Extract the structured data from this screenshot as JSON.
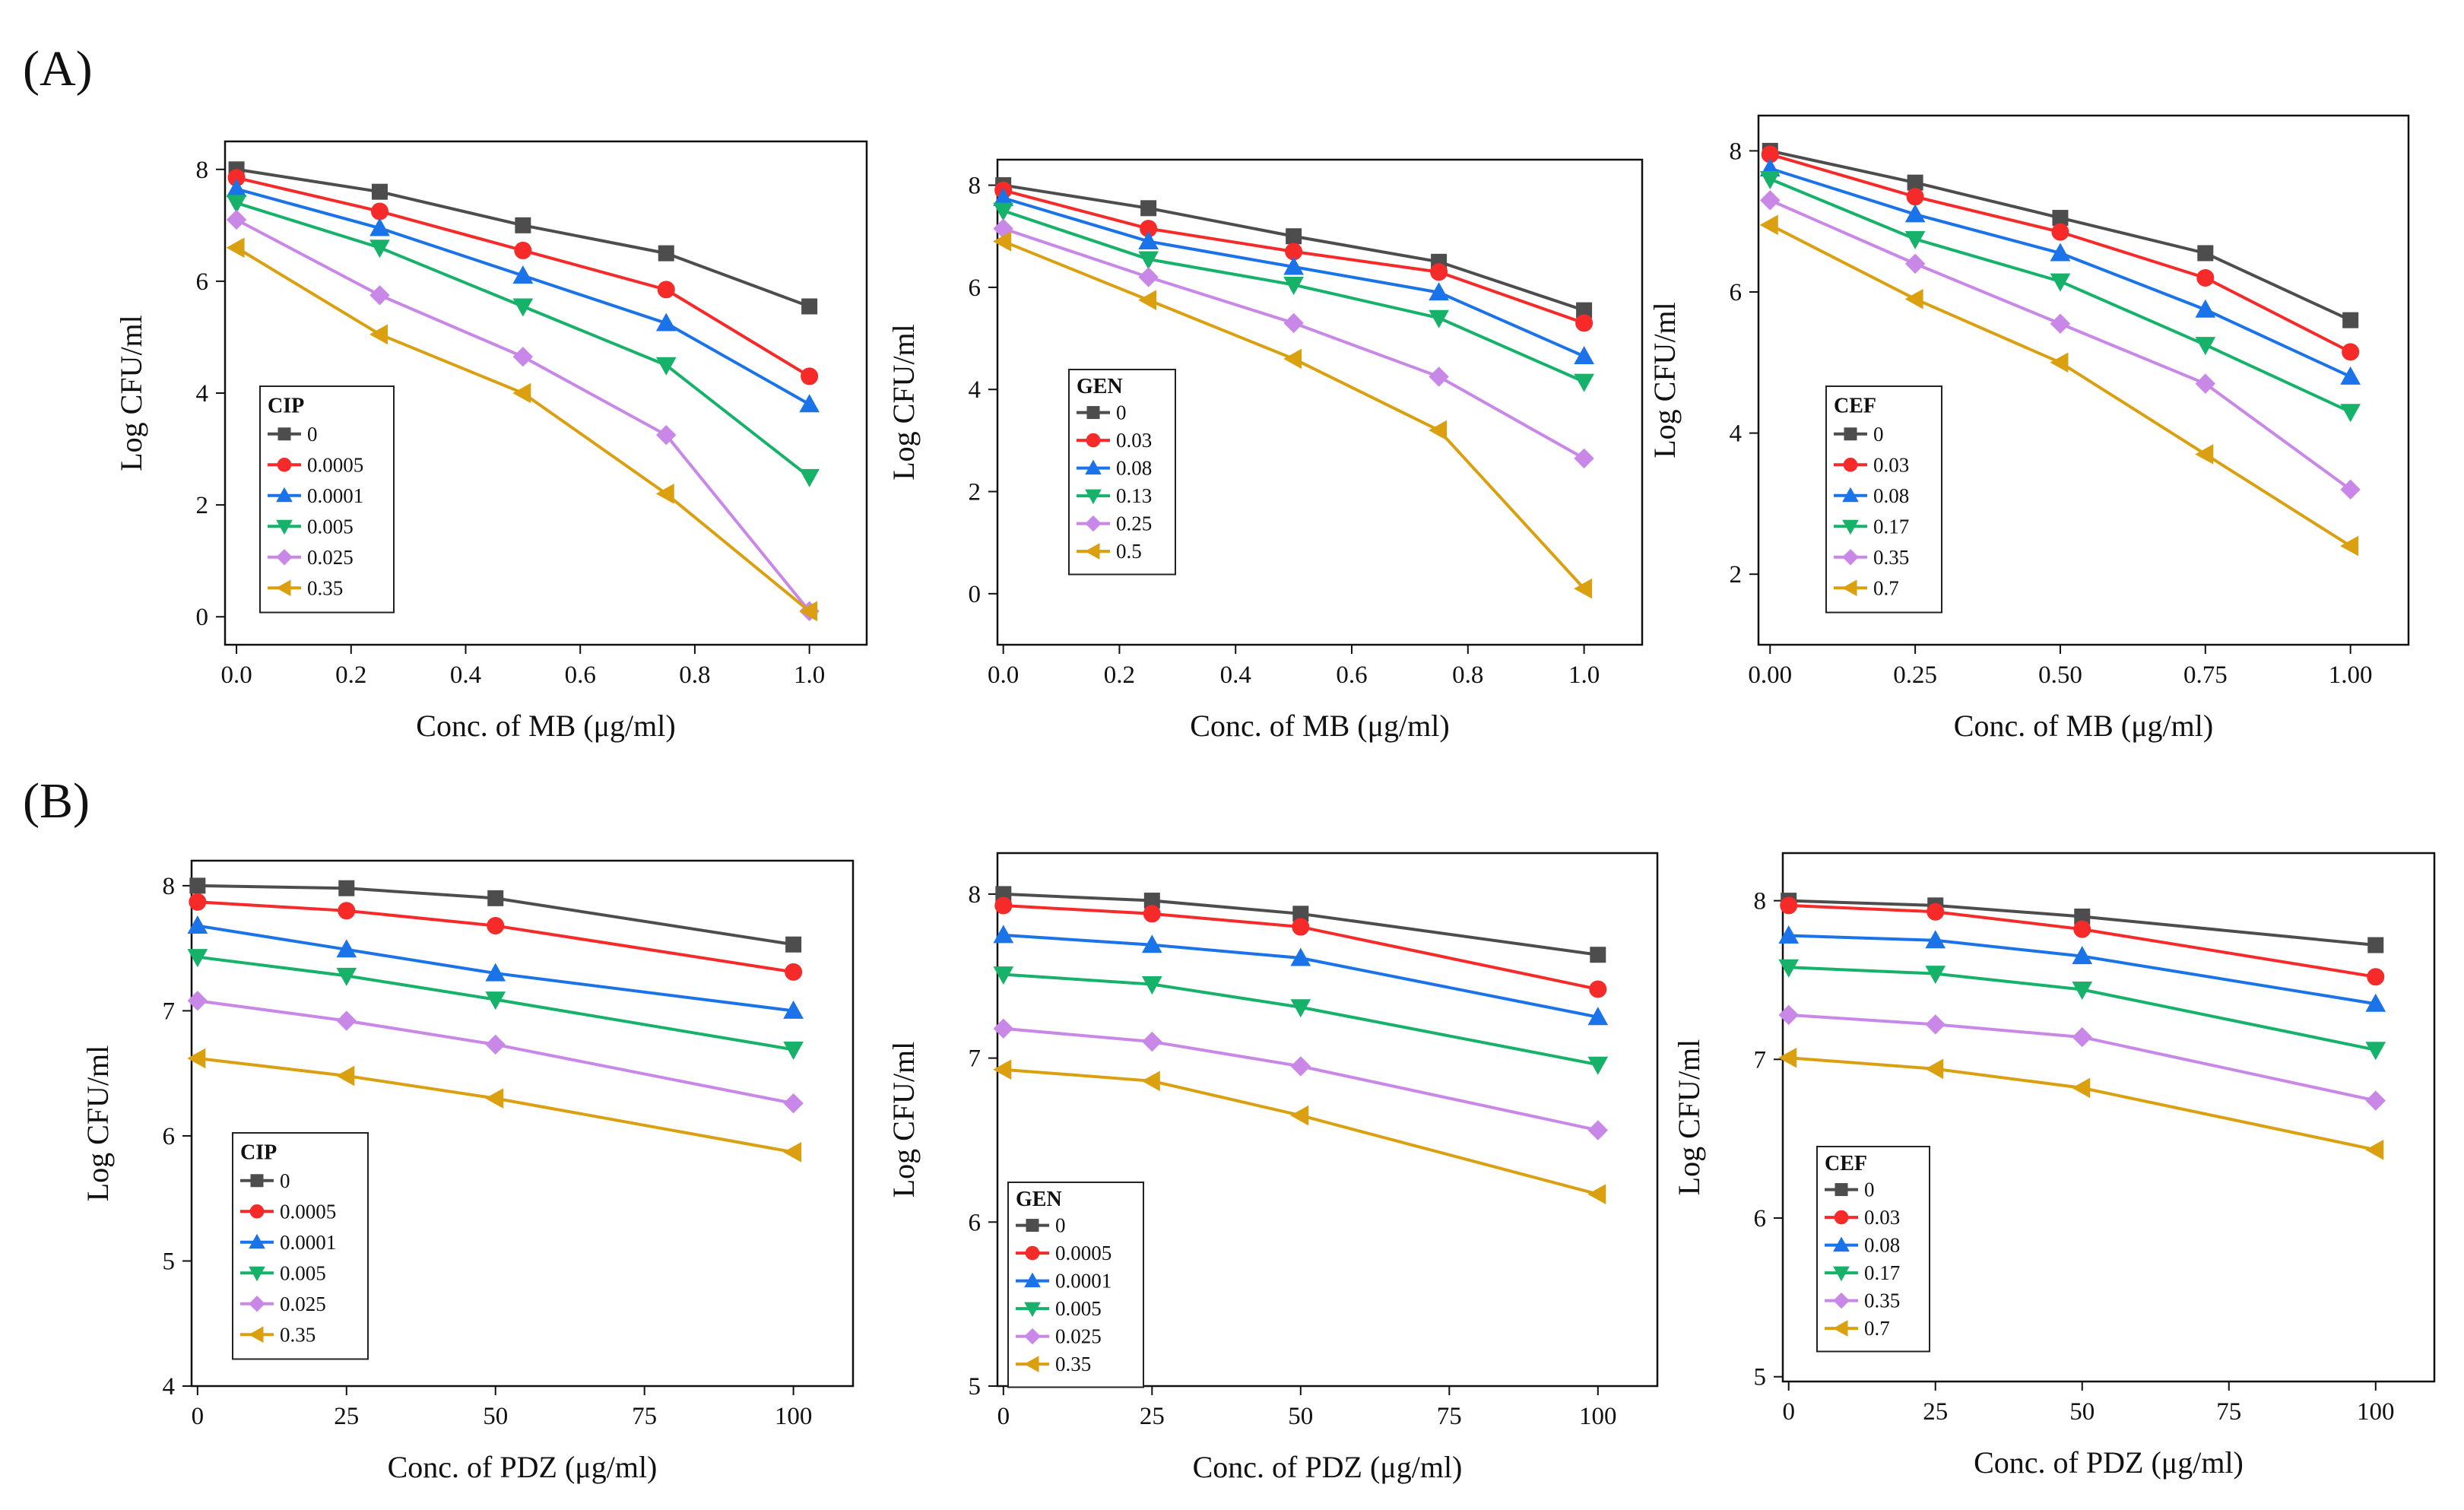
{
  "panel_labels": [
    "(A)",
    "(B)"
  ],
  "colors": {
    "series": [
      "#4d4d4d",
      "#f72a2a",
      "#1a73e8",
      "#17b26a",
      "#c987e8",
      "#dba010"
    ]
  },
  "marker_shapes": [
    "square",
    "circle",
    "triangle-up",
    "triangle-down",
    "diamond",
    "triangle-left"
  ],
  "chart_data": [
    {
      "type": "line",
      "panel": "A",
      "legend_title": "CIP",
      "xlabel": "Conc. of MB (μg/ml)",
      "ylabel": "Log CFU/ml",
      "x": [
        0,
        0.25,
        0.5,
        0.75,
        1.0
      ],
      "xticks": [
        0,
        0.2,
        0.4,
        0.6,
        0.8,
        1.0
      ],
      "xtick_labels": [
        "0.0",
        "0.2",
        "0.4",
        "0.6",
        "0.8",
        "1.0"
      ],
      "yticks": [
        0,
        2,
        4,
        6,
        8
      ],
      "ytick_labels": [
        "0",
        "2",
        "4",
        "6",
        "8"
      ],
      "xlim": [
        -0.02,
        1.1
      ],
      "ylim": [
        -0.5,
        8.5
      ],
      "series": [
        {
          "name": "0",
          "values": [
            8.0,
            7.6,
            7.0,
            6.5,
            5.55
          ]
        },
        {
          "name": "0.0005",
          "values": [
            7.85,
            7.25,
            6.55,
            5.85,
            4.3
          ]
        },
        {
          "name": "0.0001",
          "values": [
            7.65,
            6.95,
            6.1,
            5.25,
            3.8
          ]
        },
        {
          "name": "0.005",
          "values": [
            7.4,
            6.6,
            5.55,
            4.5,
            2.5
          ]
        },
        {
          "name": "0.025",
          "values": [
            7.1,
            5.75,
            4.65,
            3.25,
            0.1
          ]
        },
        {
          "name": "0.35",
          "values": [
            6.6,
            5.05,
            4.0,
            2.2,
            0.1
          ]
        }
      ]
    },
    {
      "type": "line",
      "panel": "A",
      "legend_title": "GEN",
      "xlabel": "Conc. of MB (μg/ml)",
      "ylabel": "Log CFU/ml",
      "x": [
        0,
        0.25,
        0.5,
        0.75,
        1.0
      ],
      "xticks": [
        0,
        0.2,
        0.4,
        0.6,
        0.8,
        1.0
      ],
      "xtick_labels": [
        "0.0",
        "0.2",
        "0.4",
        "0.6",
        "0.8",
        "1.0"
      ],
      "yticks": [
        0,
        2,
        4,
        6,
        8
      ],
      "ytick_labels": [
        "0",
        "2",
        "4",
        "6",
        "8"
      ],
      "xlim": [
        -0.01,
        1.1
      ],
      "ylim": [
        -1.0,
        8.5
      ],
      "series": [
        {
          "name": "0",
          "values": [
            8.0,
            7.55,
            7.0,
            6.5,
            5.55
          ]
        },
        {
          "name": "0.03",
          "values": [
            7.9,
            7.15,
            6.7,
            6.3,
            5.3
          ]
        },
        {
          "name": "0.08",
          "values": [
            7.75,
            6.9,
            6.4,
            5.9,
            4.65
          ]
        },
        {
          "name": "0.13",
          "values": [
            7.5,
            6.55,
            6.05,
            5.4,
            4.15
          ]
        },
        {
          "name": "0.25",
          "values": [
            7.15,
            6.2,
            5.3,
            4.25,
            2.65
          ]
        },
        {
          "name": "0.5",
          "values": [
            6.9,
            5.75,
            4.6,
            3.2,
            0.1
          ]
        }
      ]
    },
    {
      "type": "line",
      "panel": "A",
      "legend_title": "CEF",
      "xlabel": "Conc. of MB (μg/ml)",
      "ylabel": "Log CFU/ml",
      "x": [
        0,
        0.25,
        0.5,
        0.75,
        1.0
      ],
      "xticks": [
        0,
        0.25,
        0.5,
        0.75,
        1.0
      ],
      "xtick_labels": [
        "0.00",
        "0.25",
        "0.50",
        "0.75",
        "1.00"
      ],
      "yticks": [
        2,
        4,
        6,
        8
      ],
      "ytick_labels": [
        "2",
        "4",
        "6",
        "8"
      ],
      "xlim": [
        -0.02,
        1.1
      ],
      "ylim": [
        1.0,
        8.5
      ],
      "series": [
        {
          "name": "0",
          "values": [
            8.0,
            7.55,
            7.05,
            6.55,
            5.6
          ]
        },
        {
          "name": "0.03",
          "values": [
            7.95,
            7.35,
            6.85,
            6.2,
            5.15
          ]
        },
        {
          "name": "0.08",
          "values": [
            7.75,
            7.1,
            6.55,
            5.75,
            4.8
          ]
        },
        {
          "name": "0.17",
          "values": [
            7.6,
            6.75,
            6.15,
            5.25,
            4.3
          ]
        },
        {
          "name": "0.35",
          "values": [
            7.3,
            6.4,
            5.55,
            4.7,
            3.2
          ]
        },
        {
          "name": "0.7",
          "values": [
            6.95,
            5.9,
            5.0,
            3.7,
            2.4
          ]
        }
      ]
    },
    {
      "type": "line",
      "panel": "B",
      "legend_title": "CIP",
      "xlabel": "Conc. of PDZ (μg/ml)",
      "ylabel": "Log CFU/ml",
      "x": [
        0,
        25,
        50,
        100
      ],
      "xticks": [
        0,
        25,
        50,
        75,
        100
      ],
      "xtick_labels": [
        "0",
        "25",
        "50",
        "75",
        "100"
      ],
      "yticks": [
        4,
        5,
        6,
        7,
        8
      ],
      "ytick_labels": [
        "4",
        "5",
        "6",
        "7",
        "8"
      ],
      "xlim": [
        -1,
        110
      ],
      "ylim": [
        4.0,
        8.2
      ],
      "series": [
        {
          "name": "0",
          "values": [
            8.0,
            7.98,
            7.9,
            7.53
          ]
        },
        {
          "name": "0.0005",
          "values": [
            7.87,
            7.8,
            7.68,
            7.31
          ]
        },
        {
          "name": "0.0001",
          "values": [
            7.68,
            7.49,
            7.3,
            7.0
          ]
        },
        {
          "name": "0.005",
          "values": [
            7.43,
            7.28,
            7.09,
            6.69
          ]
        },
        {
          "name": "0.025",
          "values": [
            7.08,
            6.92,
            6.73,
            6.26
          ]
        },
        {
          "name": "0.35",
          "values": [
            6.62,
            6.48,
            6.3,
            5.87
          ]
        }
      ]
    },
    {
      "type": "line",
      "panel": "B",
      "legend_title": "GEN",
      "xlabel": "Conc. of PDZ (μg/ml)",
      "ylabel": "Log CFU/ml",
      "x": [
        0,
        25,
        50,
        100
      ],
      "xticks": [
        0,
        25,
        50,
        75,
        100
      ],
      "xtick_labels": [
        "0",
        "25",
        "50",
        "75",
        "100"
      ],
      "yticks": [
        5,
        6,
        7,
        8
      ],
      "ytick_labels": [
        "5",
        "6",
        "7",
        "8"
      ],
      "xlim": [
        -1,
        110
      ],
      "ylim": [
        5.0,
        8.25
      ],
      "series": [
        {
          "name": "0",
          "values": [
            8.0,
            7.96,
            7.88,
            7.63
          ]
        },
        {
          "name": "0.0005",
          "values": [
            7.93,
            7.88,
            7.8,
            7.42
          ]
        },
        {
          "name": "0.0001",
          "values": [
            7.75,
            7.69,
            7.61,
            7.25
          ]
        },
        {
          "name": "0.005",
          "values": [
            7.51,
            7.45,
            7.31,
            6.96
          ]
        },
        {
          "name": "0.025",
          "values": [
            7.18,
            7.1,
            6.95,
            6.56
          ]
        },
        {
          "name": "0.35",
          "values": [
            6.93,
            6.86,
            6.65,
            6.17
          ]
        }
      ]
    },
    {
      "type": "line",
      "panel": "B",
      "legend_title": "CEF",
      "xlabel": "Conc. of PDZ (μg/ml)",
      "ylabel": "Log CFU/ml",
      "x": [
        0,
        25,
        50,
        100
      ],
      "xticks": [
        0,
        25,
        50,
        75,
        100
      ],
      "xtick_labels": [
        "0",
        "25",
        "50",
        "75",
        "100"
      ],
      "yticks": [
        5,
        6,
        7,
        8
      ],
      "ytick_labels": [
        "5",
        "6",
        "7",
        "8"
      ],
      "xlim": [
        -1,
        110
      ],
      "ylim": [
        4.97,
        8.3
      ],
      "series": [
        {
          "name": "0",
          "values": [
            8.0,
            7.97,
            7.9,
            7.72
          ]
        },
        {
          "name": "0.03",
          "values": [
            7.97,
            7.93,
            7.82,
            7.52
          ]
        },
        {
          "name": "0.08",
          "values": [
            7.78,
            7.75,
            7.65,
            7.35
          ]
        },
        {
          "name": "0.17",
          "values": [
            7.58,
            7.54,
            7.44,
            7.06
          ]
        },
        {
          "name": "0.35",
          "values": [
            7.28,
            7.22,
            7.14,
            6.74
          ]
        },
        {
          "name": "0.7",
          "values": [
            7.01,
            6.94,
            6.82,
            6.43
          ]
        }
      ]
    }
  ]
}
